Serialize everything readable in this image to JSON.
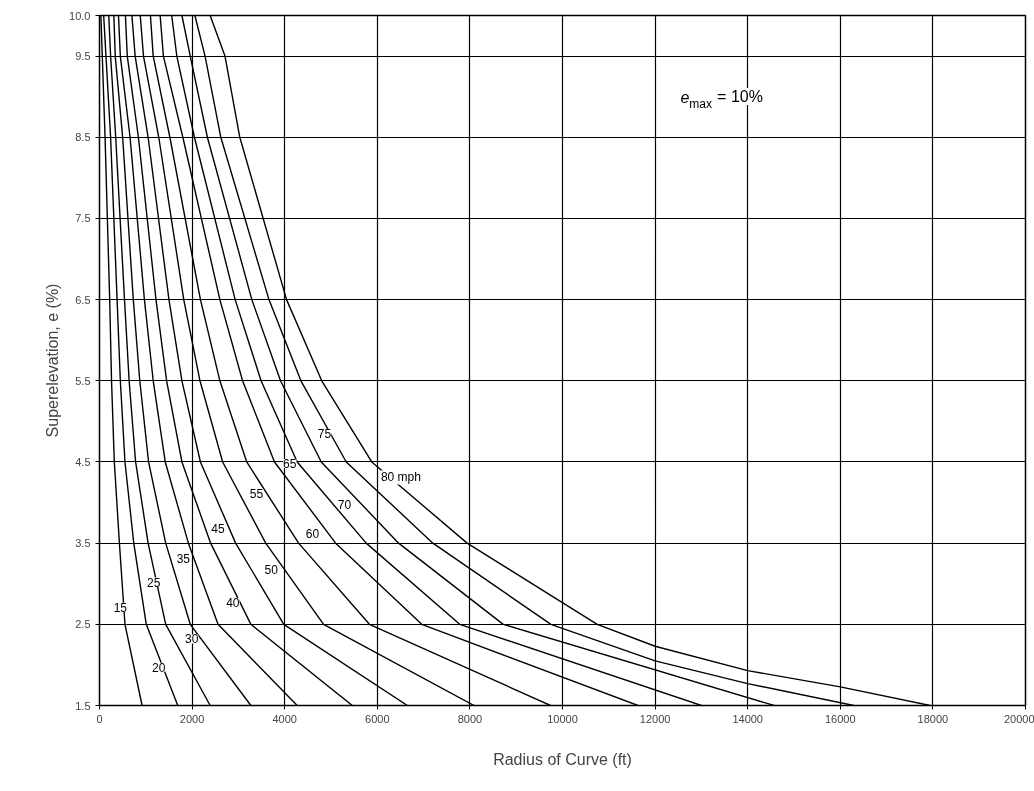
{
  "chart_data": {
    "type": "line",
    "xlabel": "Radius of Curve (ft)",
    "ylabel": "Superelevation, e (%)",
    "xlim": [
      0,
      20000
    ],
    "ylim": [
      1.5,
      10
    ],
    "xticks": [
      0,
      2000,
      4000,
      6000,
      8000,
      10000,
      12000,
      14000,
      16000,
      18000,
      20000
    ],
    "yticks": [
      1.5,
      2.5,
      3.5,
      4.5,
      5.5,
      6.5,
      7.5,
      8.5,
      9.5,
      {
        "value": 10,
        "label": "10.0"
      }
    ],
    "grid": true,
    "marker": "none",
    "line_style": "solid",
    "series": [
      {
        "color": "#000000",
        "x": [
          30,
          60,
          120,
          220,
          260,
          320,
          430,
          550,
          920
        ],
        "values": [
          10,
          9.5,
          8.5,
          6.5,
          5.5,
          4.5,
          3.5,
          2.5,
          1.5
        ]
      },
      {
        "color": "#000000",
        "x": [
          90,
          140,
          240,
          380,
          450,
          550,
          740,
          1010,
          1690
        ],
        "values": [
          10,
          9.5,
          8.5,
          6.5,
          5.5,
          4.5,
          3.5,
          2.5,
          1.5
        ]
      },
      {
        "color": "#000000",
        "x": [
          200,
          240,
          350,
          540,
          640,
          780,
          1050,
          1430,
          2390
        ],
        "values": [
          10,
          9.5,
          8.5,
          6.5,
          5.5,
          4.5,
          3.5,
          2.5,
          1.5
        ]
      },
      {
        "color": "#000000",
        "x": [
          310,
          340,
          500,
          730,
          870,
          1060,
          1430,
          1960,
          3270
        ],
        "values": [
          10,
          9.5,
          8.5,
          6.5,
          5.5,
          4.5,
          3.5,
          2.5,
          1.5
        ]
      },
      {
        "color": "#000000",
        "x": [
          410,
          450,
          660,
          970,
          1160,
          1420,
          1920,
          2560,
          4270
        ],
        "values": [
          10,
          9.5,
          8.5,
          6.5,
          5.5,
          4.5,
          3.5,
          2.5,
          1.5
        ]
      },
      {
        "color": "#000000",
        "x": [
          560,
          600,
          840,
          1220,
          1450,
          1780,
          2400,
          3270,
          5460
        ],
        "values": [
          10,
          9.5,
          8.5,
          6.5,
          5.5,
          4.5,
          3.5,
          2.5,
          1.5
        ]
      },
      {
        "color": "#000000",
        "x": [
          700,
          770,
          1050,
          1500,
          1780,
          2180,
          2940,
          3980,
          6650
        ],
        "values": [
          10,
          9.5,
          8.5,
          6.5,
          5.5,
          4.5,
          3.5,
          2.5,
          1.5
        ]
      },
      {
        "color": "#000000",
        "x": [
          880,
          950,
          1280,
          1820,
          2170,
          2660,
          3590,
          4840,
          8090
        ],
        "values": [
          10,
          9.5,
          8.5,
          6.5,
          5.5,
          4.5,
          3.5,
          2.5,
          1.5
        ]
      },
      {
        "color": "#000000",
        "x": [
          1100,
          1160,
          1520,
          2180,
          2600,
          3180,
          4300,
          5830,
          9740
        ],
        "values": [
          10,
          9.5,
          8.5,
          6.5,
          5.5,
          4.5,
          3.5,
          2.5,
          1.5
        ]
      },
      {
        "color": "#000000",
        "x": [
          1310,
          1380,
          1800,
          2600,
          3090,
          3780,
          5100,
          6960,
          11630
        ],
        "values": [
          10,
          9.5,
          8.5,
          6.5,
          5.5,
          4.5,
          3.5,
          2.5,
          1.5
        ]
      },
      {
        "color": "#000000",
        "x": [
          1560,
          1670,
          2050,
          2930,
          3490,
          4270,
          5760,
          7780,
          13000
        ],
        "values": [
          10,
          9.5,
          8.5,
          6.5,
          5.5,
          4.5,
          3.5,
          2.5,
          1.5
        ]
      },
      {
        "color": "#000000",
        "x": [
          1780,
          1960,
          2330,
          3290,
          3910,
          4790,
          6460,
          8720,
          14570
        ],
        "values": [
          10,
          9.5,
          8.5,
          6.5,
          5.5,
          4.5,
          3.5,
          2.5,
          1.5
        ]
      },
      {
        "color": "#000000",
        "x": [
          2060,
          2280,
          2620,
          3660,
          4350,
          5330,
          7200,
          9750,
          12000,
          14000,
          16290
        ],
        "values": [
          10,
          9.5,
          8.5,
          6.5,
          5.5,
          4.5,
          3.5,
          2.5,
          2.05,
          1.77,
          1.5
        ]
      },
      {
        "color": "#000000",
        "x": [
          2390,
          2710,
          3030,
          4040,
          4800,
          5880,
          7940,
          10750,
          12000,
          14000,
          16000,
          17940
        ],
        "values": [
          10,
          9.5,
          8.5,
          6.5,
          5.5,
          4.5,
          3.5,
          2.5,
          2.23,
          1.93,
          1.73,
          1.5
        ]
      }
    ],
    "annotations": [
      {
        "text": "15",
        "x": 450,
        "y": 2.71
      },
      {
        "text": "20",
        "x": 1280,
        "y": 1.97
      },
      {
        "text": "25",
        "x": 1170,
        "y": 3.02
      },
      {
        "text": "30",
        "x": 1990,
        "y": 2.32
      },
      {
        "text": "35",
        "x": 1810,
        "y": 3.31
      },
      {
        "text": "40",
        "x": 2880,
        "y": 2.77
      },
      {
        "text": "45",
        "x": 2560,
        "y": 3.68
      },
      {
        "text": "50",
        "x": 3710,
        "y": 3.18
      },
      {
        "text": "55",
        "x": 3390,
        "y": 4.11
      },
      {
        "text": "60",
        "x": 4600,
        "y": 3.62
      },
      {
        "text": "65",
        "x": 4110,
        "y": 4.48
      },
      {
        "text": "70",
        "x": 5290,
        "y": 3.98
      },
      {
        "text": "75",
        "x": 4860,
        "y": 4.85
      },
      {
        "text": "80 mph",
        "x": 6510,
        "y": 4.31
      },
      "e$_{max}$ = 10%"
    ]
  }
}
